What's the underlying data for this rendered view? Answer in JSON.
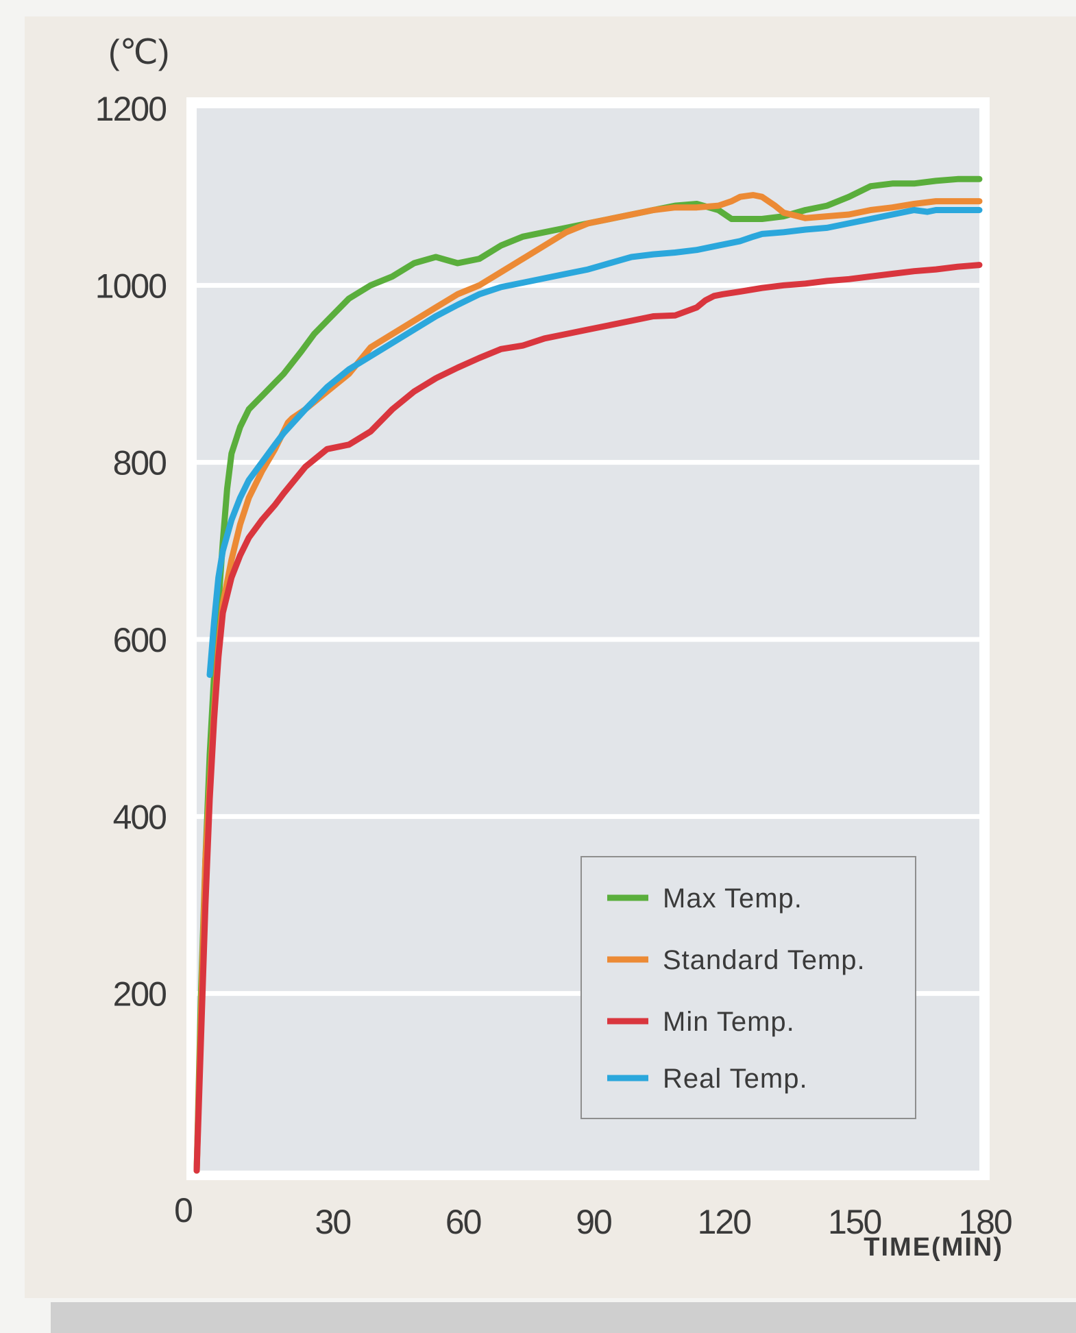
{
  "chart_data": {
    "type": "line",
    "title": "",
    "ylabel": "(℃)",
    "xlabel": "TIME(MIN)",
    "xlim": [
      0,
      180
    ],
    "ylim": [
      0,
      1200
    ],
    "x_ticks": [
      0,
      30,
      60,
      90,
      120,
      150,
      180
    ],
    "y_ticks": [
      200,
      400,
      600,
      800,
      1000,
      1200
    ],
    "grid": true,
    "legend_position": "bottom-right",
    "series": [
      {
        "name": "Max Temp.",
        "color": "#5aae3c",
        "x": [
          0,
          1,
          2,
          3,
          4,
          5,
          6,
          7,
          8,
          10,
          12,
          15,
          18,
          20,
          24,
          27,
          30,
          35,
          40,
          45,
          50,
          55,
          60,
          65,
          70,
          75,
          80,
          85,
          90,
          95,
          100,
          105,
          110,
          115,
          120,
          123,
          125,
          127,
          130,
          135,
          140,
          145,
          150,
          155,
          160,
          165,
          170,
          175,
          180
        ],
        "y": [
          0,
          200,
          350,
          470,
          560,
          640,
          710,
          770,
          810,
          840,
          860,
          875,
          890,
          900,
          925,
          945,
          960,
          985,
          1000,
          1010,
          1025,
          1032,
          1025,
          1030,
          1045,
          1055,
          1060,
          1065,
          1070,
          1075,
          1080,
          1085,
          1090,
          1092,
          1085,
          1075,
          1075,
          1075,
          1075,
          1078,
          1085,
          1090,
          1100,
          1112,
          1115,
          1115,
          1118,
          1120,
          1120
        ]
      },
      {
        "name": "Standard Temp.",
        "color": "#ec8a35",
        "x": [
          0,
          2,
          4,
          5,
          6,
          8,
          10,
          12,
          15,
          18,
          20,
          21,
          22,
          25,
          30,
          35,
          40,
          45,
          50,
          55,
          60,
          65,
          70,
          75,
          80,
          85,
          90,
          95,
          100,
          105,
          110,
          115,
          120,
          123,
          125,
          128,
          130,
          133,
          135,
          140,
          145,
          150,
          155,
          160,
          165,
          170,
          175,
          180
        ],
        "y": [
          0,
          350,
          520,
          590,
          640,
          690,
          730,
          760,
          790,
          815,
          835,
          845,
          850,
          860,
          880,
          900,
          930,
          945,
          960,
          975,
          990,
          1000,
          1015,
          1030,
          1045,
          1060,
          1070,
          1075,
          1080,
          1085,
          1088,
          1088,
          1090,
          1095,
          1100,
          1102,
          1100,
          1090,
          1082,
          1076,
          1078,
          1080,
          1085,
          1088,
          1092,
          1095,
          1095,
          1095
        ]
      },
      {
        "name": "Min Temp.",
        "color": "#d9363e",
        "x": [
          0,
          1,
          2,
          3,
          4,
          5,
          6,
          8,
          10,
          12,
          15,
          18,
          20,
          25,
          30,
          35,
          40,
          45,
          50,
          55,
          60,
          65,
          70,
          75,
          80,
          85,
          90,
          95,
          100,
          105,
          110,
          115,
          117,
          119,
          121,
          125,
          130,
          135,
          140,
          145,
          150,
          155,
          160,
          165,
          170,
          175,
          180
        ],
        "y": [
          0,
          150,
          300,
          420,
          510,
          580,
          630,
          670,
          695,
          715,
          735,
          752,
          765,
          795,
          815,
          820,
          835,
          860,
          880,
          895,
          907,
          918,
          928,
          932,
          940,
          945,
          950,
          955,
          960,
          965,
          966,
          975,
          983,
          988,
          990,
          993,
          997,
          1000,
          1002,
          1005,
          1007,
          1010,
          1013,
          1016,
          1018,
          1021,
          1023
        ]
      },
      {
        "name": "Real Temp.",
        "color": "#2ba7dc",
        "x": [
          3,
          4,
          5,
          6,
          8,
          10,
          12,
          15,
          18,
          20,
          25,
          30,
          35,
          40,
          45,
          50,
          55,
          60,
          65,
          70,
          75,
          80,
          85,
          90,
          95,
          100,
          105,
          110,
          115,
          120,
          125,
          128,
          130,
          135,
          140,
          145,
          150,
          155,
          160,
          165,
          168,
          170,
          175,
          180
        ],
        "y": [
          560,
          620,
          670,
          700,
          735,
          760,
          780,
          800,
          820,
          833,
          860,
          885,
          905,
          920,
          935,
          950,
          965,
          978,
          990,
          998,
          1003,
          1008,
          1013,
          1018,
          1025,
          1032,
          1035,
          1037,
          1040,
          1045,
          1050,
          1055,
          1058,
          1060,
          1063,
          1065,
          1070,
          1075,
          1080,
          1085,
          1083,
          1085,
          1085,
          1085
        ]
      }
    ]
  }
}
